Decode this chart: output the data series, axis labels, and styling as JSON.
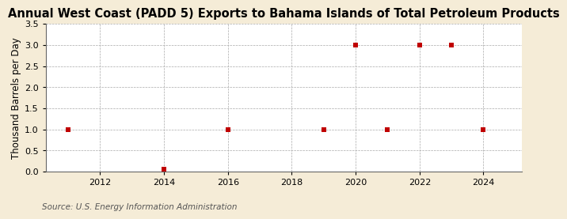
{
  "title": "Annual West Coast (PADD 5) Exports to Bahama Islands of Total Petroleum Products",
  "ylabel": "Thousand Barrels per Day",
  "source": "Source: U.S. Energy Information Administration",
  "fig_background_color": "#f5ecd7",
  "plot_background_color": "#ffffff",
  "data_x": [
    2011,
    2014,
    2016,
    2019,
    2020,
    2021,
    2022,
    2023,
    2024
  ],
  "data_y": [
    1.0,
    0.05,
    1.0,
    1.0,
    3.0,
    1.0,
    3.0,
    3.0,
    1.0
  ],
  "marker_color": "#c00000",
  "marker_size": 5,
  "xlim": [
    2010.3,
    2025.2
  ],
  "ylim": [
    0.0,
    3.5
  ],
  "xticks": [
    2012,
    2014,
    2016,
    2018,
    2020,
    2022,
    2024
  ],
  "yticks": [
    0.0,
    0.5,
    1.0,
    1.5,
    2.0,
    2.5,
    3.0,
    3.5
  ],
  "grid_color": "#aaaaaa",
  "title_fontsize": 10.5,
  "axis_fontsize": 8.5,
  "tick_fontsize": 8,
  "source_fontsize": 7.5
}
